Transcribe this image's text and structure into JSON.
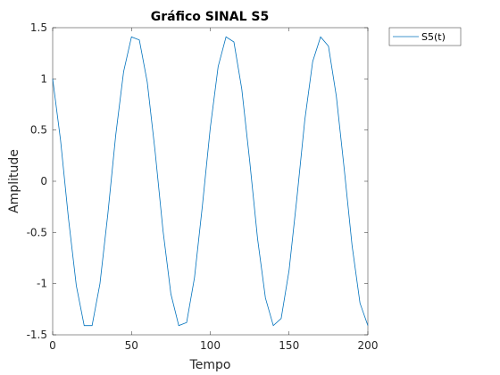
{
  "chart_data": {
    "type": "line",
    "title": "Gráfico SINAL S5",
    "xlabel": "Tempo",
    "ylabel": "Amplitude",
    "xlim": [
      0,
      200
    ],
    "ylim": [
      -1.5,
      1.5
    ],
    "xticks": [
      "0",
      "50",
      "100",
      "150",
      "200"
    ],
    "yticks": [
      "1.5",
      "1",
      "0.5",
      "0",
      "-0.5",
      "-1",
      "-1.5"
    ],
    "grid": false,
    "legend_position": "outside-top-right",
    "series": [
      {
        "name": "S5(t)",
        "color": "#0072BD",
        "x": [
          0,
          5,
          10,
          15,
          20,
          25,
          30,
          35,
          40,
          45,
          50,
          55,
          60,
          65,
          70,
          75,
          80,
          85,
          90,
          95,
          100,
          105,
          110,
          115,
          120,
          125,
          130,
          135,
          140,
          145,
          150,
          155,
          160,
          165,
          170,
          175,
          180,
          185,
          190,
          195,
          200
        ],
        "y": [
          1.0,
          0.4,
          -0.36,
          -1.02,
          -1.41,
          -1.41,
          -1.0,
          -0.32,
          0.45,
          1.07,
          1.41,
          1.38,
          0.97,
          0.29,
          -0.48,
          -1.1,
          -1.41,
          -1.38,
          -0.94,
          -0.24,
          0.52,
          1.12,
          1.41,
          1.36,
          0.9,
          0.2,
          -0.56,
          -1.14,
          -1.41,
          -1.34,
          -0.87,
          -0.16,
          0.6,
          1.17,
          1.41,
          1.32,
          0.83,
          0.12,
          -0.63,
          -1.19,
          -1.41
        ]
      }
    ]
  }
}
